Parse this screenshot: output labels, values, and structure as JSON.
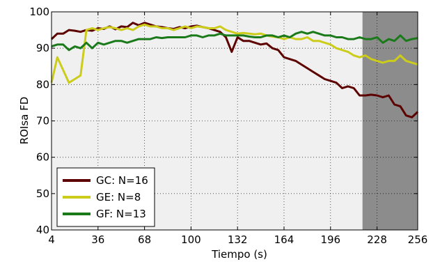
{
  "chart_data": {
    "type": "line",
    "title": "",
    "xlabel": "Tiempo (s)",
    "ylabel": "ROIsa FD",
    "xlim": [
      4,
      256
    ],
    "ylim": [
      40,
      100
    ],
    "xticks": [
      4,
      36,
      68,
      100,
      132,
      164,
      196,
      228,
      256
    ],
    "yticks": [
      40,
      50,
      60,
      70,
      80,
      90,
      100
    ],
    "grid": true,
    "legend_position": "lower-left",
    "background_color": "#f0f0f0",
    "shaded_region": {
      "x": [
        218,
        256
      ],
      "color": "#8c8c8c"
    },
    "x": [
      4,
      8,
      12,
      16,
      20,
      24,
      28,
      32,
      36,
      40,
      44,
      48,
      52,
      56,
      60,
      64,
      68,
      72,
      76,
      80,
      84,
      88,
      92,
      96,
      100,
      104,
      108,
      112,
      116,
      120,
      124,
      128,
      132,
      136,
      140,
      144,
      148,
      152,
      156,
      160,
      164,
      168,
      172,
      176,
      180,
      184,
      188,
      192,
      196,
      200,
      204,
      208,
      212,
      216,
      220,
      224,
      228,
      232,
      236,
      240,
      244,
      248,
      252,
      256
    ],
    "series": [
      {
        "name": "GC: N=16",
        "color": "#5c0000",
        "values": [
          92.5,
          94.0,
          94.0,
          95.0,
          94.8,
          94.5,
          95.0,
          94.8,
          95.5,
          95.3,
          96.0,
          95.2,
          96.0,
          95.8,
          97.0,
          96.3,
          97.0,
          96.5,
          96.0,
          95.8,
          95.5,
          95.3,
          95.8,
          95.5,
          96.0,
          96.2,
          95.8,
          95.5,
          95.0,
          94.5,
          93.0,
          89.0,
          93.0,
          92.0,
          92.0,
          91.5,
          91.0,
          91.3,
          90.0,
          89.5,
          87.5,
          87.0,
          86.5,
          85.5,
          84.5,
          83.5,
          82.5,
          81.5,
          81.0,
          80.5,
          79.0,
          79.5,
          79.0,
          77.0,
          77.0,
          77.2,
          77.0,
          76.5,
          77.0,
          74.5,
          74.0,
          71.5,
          71.0,
          72.5
        ]
      },
      {
        "name": "GE: N=8",
        "color": "#cccc1a",
        "values": [
          80.5,
          87.5,
          84.0,
          80.5,
          81.5,
          82.5,
          95.0,
          95.5,
          95.0,
          95.5,
          95.8,
          95.5,
          95.0,
          95.5,
          95.0,
          96.0,
          96.5,
          96.0,
          96.0,
          95.5,
          95.5,
          95.0,
          95.5,
          96.0,
          95.5,
          96.0,
          95.8,
          95.5,
          95.5,
          96.0,
          95.0,
          94.5,
          94.0,
          94.2,
          94.0,
          93.8,
          94.0,
          93.5,
          93.2,
          93.0,
          92.5,
          93.0,
          92.5,
          92.5,
          93.0,
          92.0,
          92.0,
          91.5,
          91.0,
          90.0,
          89.5,
          89.0,
          88.0,
          87.5,
          88.0,
          87.0,
          86.5,
          86.0,
          86.5,
          86.5,
          88.0,
          86.5,
          86.0,
          85.5
        ]
      },
      {
        "name": "GF: N=13",
        "color": "#1a7a1a",
        "values": [
          90.5,
          91.0,
          91.0,
          89.5,
          90.5,
          90.0,
          91.5,
          90.0,
          91.5,
          91.0,
          91.5,
          92.0,
          92.0,
          91.5,
          92.0,
          92.5,
          92.5,
          92.5,
          93.0,
          92.8,
          93.0,
          93.0,
          93.0,
          93.0,
          93.5,
          93.5,
          93.0,
          93.5,
          93.5,
          94.0,
          93.5,
          93.5,
          93.5,
          93.5,
          93.2,
          93.0,
          93.0,
          93.5,
          93.5,
          93.0,
          93.5,
          93.0,
          94.0,
          94.5,
          94.0,
          94.5,
          94.0,
          93.5,
          93.5,
          93.0,
          93.0,
          92.5,
          92.5,
          93.0,
          92.5,
          92.5,
          93.0,
          91.5,
          92.5,
          92.0,
          93.5,
          92.0,
          92.5,
          92.8
        ]
      }
    ]
  }
}
